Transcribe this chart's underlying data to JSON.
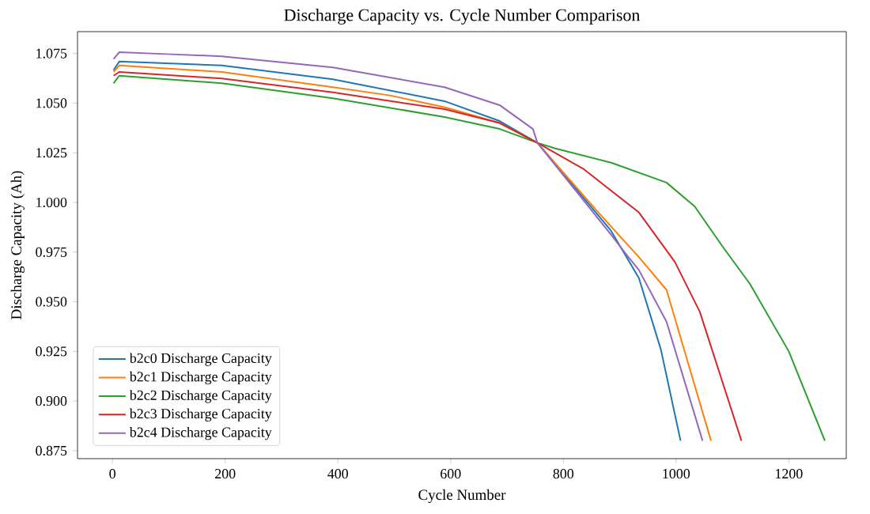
{
  "chart_data": {
    "type": "line",
    "title": "Discharge Capacity vs. Cycle Number Comparison",
    "xlabel": "Cycle Number",
    "ylabel": "Discharge Capacity (Ah)",
    "xlim": [
      -62,
      1302
    ],
    "ylim": [
      0.871,
      1.086
    ],
    "xticks": [
      0,
      200,
      400,
      600,
      800,
      1000,
      1200
    ],
    "yticks": [
      0.875,
      {
        "value": 0.9,
        "label": "0.900"
      },
      0.925,
      {
        "value": 0.95,
        "label": "0.950"
      },
      0.975,
      {
        "value": 1.0,
        "label": "1.000"
      },
      1.025,
      {
        "value": 1.05,
        "label": "1.050"
      },
      1.075
    ],
    "grid": false,
    "legend": "bottom left",
    "marker": "none",
    "line_style": "solid",
    "series": [
      {
        "name": "b2c0 Discharge Capacity",
        "color": "#1f77b4",
        "x": [
          2,
          12,
          194,
          391,
          589,
          687,
          754,
          884,
          934,
          973,
          1008
        ],
        "values": [
          1.0666,
          1.071,
          1.069,
          1.062,
          1.051,
          1.041,
          1.03,
          0.986,
          0.962,
          0.926,
          0.88
        ]
      },
      {
        "name": "b2c1 Discharge Capacity",
        "color": "#ff7f0e",
        "x": [
          2,
          12,
          194,
          391,
          490,
          589,
          687,
          754,
          862,
          934,
          983,
          1062
        ],
        "values": [
          1.0657,
          1.069,
          1.0657,
          1.058,
          1.054,
          1.048,
          1.04,
          1.03,
          0.995,
          0.9725,
          0.956,
          0.88
        ]
      },
      {
        "name": "b2c2 Discharge Capacity",
        "color": "#2ca02c",
        "x": [
          2,
          12,
          194,
          391,
          589,
          687,
          754,
          786,
          885,
          983,
          1033,
          1082,
          1131,
          1200,
          1264
        ],
        "values": [
          1.06,
          1.0638,
          1.06,
          1.0525,
          1.043,
          1.037,
          1.03,
          1.0272,
          1.02,
          1.01,
          0.998,
          0.978,
          0.959,
          0.925,
          0.88
        ]
      },
      {
        "name": "b2c3 Discharge Capacity",
        "color": "#d62728",
        "x": [
          2,
          12,
          194,
          391,
          589,
          687,
          754,
          835,
          934,
          998,
          1042,
          1116
        ],
        "values": [
          1.0638,
          1.0657,
          1.0624,
          1.0554,
          1.047,
          1.04,
          1.03,
          1.017,
          0.995,
          0.97,
          0.945,
          0.88
        ]
      },
      {
        "name": "b2c4 Discharge Capacity",
        "color": "#9467bd",
        "x": [
          2,
          12,
          96,
          194,
          391,
          589,
          687,
          746,
          754,
          884,
          914,
          934,
          983,
          1047
        ],
        "values": [
          1.0722,
          1.0756,
          1.0747,
          1.0736,
          1.068,
          1.058,
          1.049,
          1.037,
          1.03,
          0.984,
          0.973,
          0.966,
          0.94,
          0.88
        ]
      }
    ]
  }
}
